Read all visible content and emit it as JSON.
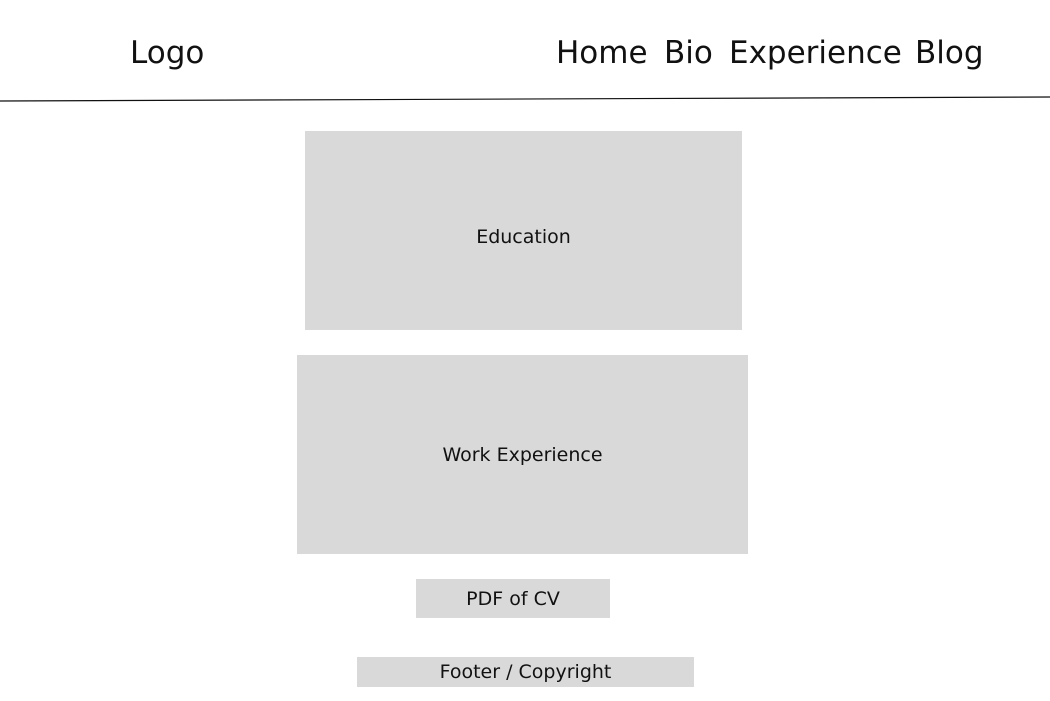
{
  "header": {
    "logo": "Logo",
    "nav": {
      "home": "Home",
      "bio": "Bio",
      "experience": "Experience",
      "blog": "Blog"
    }
  },
  "main": {
    "education_label": "Education",
    "work_experience_label": "Work Experience",
    "pdf_button_label": "PDF of CV"
  },
  "footer": {
    "label": "Footer / Copyright"
  },
  "colors": {
    "placeholder_fill": "#d9d9d9",
    "text": "#111111",
    "background": "#ffffff"
  }
}
